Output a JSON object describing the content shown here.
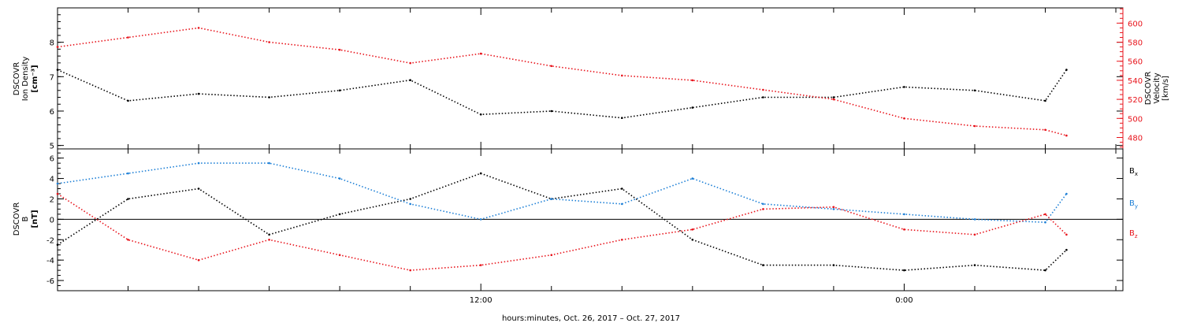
{
  "chart_data": [
    {
      "type": "line",
      "panel": "top",
      "ylabel_lines": [
        "DSCOVR",
        "Ion Density",
        "[cm⁻³]"
      ],
      "y2label_lines": [
        "DSCOVR",
        "Velocity",
        "[km/s]"
      ],
      "ylim": [
        4.9,
        9.0
      ],
      "y2lim": [
        468,
        616
      ],
      "yticks": [
        5,
        6,
        7,
        8
      ],
      "y2ticks": [
        480,
        500,
        520,
        540,
        560,
        580,
        600
      ],
      "x_hours": [
        0,
        2,
        4,
        6,
        8,
        10,
        12,
        14,
        16,
        18,
        20,
        22,
        24,
        26,
        28,
        28.6
      ],
      "series": [
        {
          "key": "density",
          "color": "#000000",
          "axis": "left",
          "values": [
            7.2,
            6.3,
            6.5,
            6.4,
            6.6,
            6.9,
            5.9,
            6.0,
            5.8,
            6.1,
            6.4,
            6.4,
            6.7,
            6.6,
            6.3,
            7.2
          ]
        },
        {
          "key": "velocity",
          "color": "#e8131b",
          "axis": "right",
          "values": [
            575,
            585,
            595,
            580,
            572,
            558,
            568,
            555,
            545,
            540,
            530,
            520,
            500,
            492,
            488,
            482
          ]
        }
      ]
    },
    {
      "type": "line",
      "panel": "bottom",
      "ylabel_lines": [
        "DSCOVR",
        "B",
        "[nT]"
      ],
      "ylim": [
        -7.0,
        6.9
      ],
      "yticks": [
        -6,
        -4,
        -2,
        0,
        2,
        4,
        6
      ],
      "zero_line": true,
      "x_hours": [
        0,
        2,
        4,
        6,
        8,
        10,
        12,
        14,
        16,
        18,
        20,
        22,
        24,
        26,
        28,
        28.6
      ],
      "series": [
        {
          "key": "bx",
          "label": "B",
          "sub": "x",
          "color": "#000000",
          "values": [
            -2.5,
            2.0,
            3.0,
            -1.5,
            0.5,
            2.0,
            4.5,
            2.0,
            3.0,
            -2.0,
            -4.5,
            -4.5,
            -5.0,
            -4.5,
            -5.0,
            -3.0
          ]
        },
        {
          "key": "by",
          "label": "B",
          "sub": "y",
          "color": "#1c7fd6",
          "values": [
            3.5,
            4.5,
            5.5,
            5.5,
            4.0,
            1.5,
            0.0,
            2.0,
            1.5,
            4.0,
            1.5,
            1.0,
            0.5,
            0.0,
            -0.3,
            2.5
          ]
        },
        {
          "key": "bz",
          "label": "B",
          "sub": "z",
          "color": "#e8131b",
          "values": [
            2.5,
            -2.0,
            -4.0,
            -2.0,
            -3.5,
            -5.0,
            -4.5,
            -3.5,
            -2.0,
            -1.0,
            1.0,
            1.2,
            -1.0,
            -1.5,
            0.5,
            -1.5
          ]
        }
      ]
    }
  ],
  "time_axis": {
    "xlim_hours": [
      0,
      30.2
    ],
    "tick_labels": [
      {
        "hour": 12,
        "label": "12:00"
      },
      {
        "hour": 24,
        "label": "0:00"
      }
    ],
    "minor_every_hours": 2,
    "title": "hours:minutes, Oct. 26, 2017 – Oct. 27, 2017"
  }
}
